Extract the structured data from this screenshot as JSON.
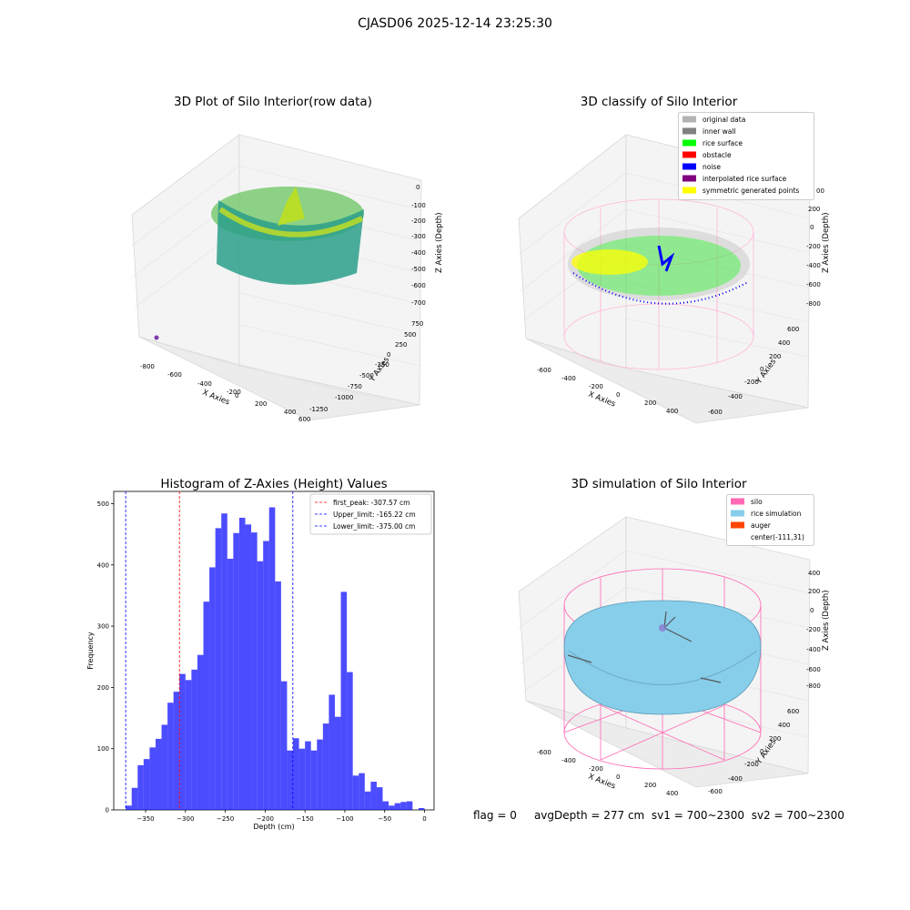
{
  "figure": {
    "suptitle": "CJASD06 2025-12-14 23:25:30",
    "footer": {
      "flag": "flag = 0",
      "avg_depth": "avgDepth = 277 cm",
      "sv1": "sv1 = 700~2300",
      "sv2": "sv2 = 700~2300"
    }
  },
  "panel_raw": {
    "title": "3D Plot of Silo Interior(row data)",
    "xlabel": "X Axies",
    "ylabel": "Y Axies",
    "zlabel": "Z Axies (Depth)",
    "x_ticks": [
      "-800",
      "-600",
      "-400",
      "-200",
      "0",
      "200",
      "400",
      "600"
    ],
    "y_ticks": [
      "750",
      "500",
      "250",
      "0",
      "-250",
      "-500",
      "-750",
      "-1000",
      "-1250"
    ],
    "z_ticks": [
      "0",
      "-100",
      "-200",
      "-300",
      "-400",
      "-500",
      "-600",
      "-700"
    ],
    "colormap": "viridis"
  },
  "panel_classify": {
    "title": "3D classify of Silo Interior",
    "xlabel": "X Axies",
    "ylabel": "Y Axies",
    "zlabel": "Z Axies (Depth)",
    "x_ticks": [
      "-600",
      "-400",
      "-200",
      "0",
      "200",
      "400"
    ],
    "y_ticks": [
      "600",
      "400",
      "200",
      "0",
      "-200",
      "-400",
      "-600"
    ],
    "z_ticks": [
      "200",
      "0",
      "-200",
      "-400",
      "-600",
      "-800"
    ],
    "z_tick_top_partial": "00",
    "legend": [
      {
        "label": "original data",
        "color": "#b3b3b3"
      },
      {
        "label": "inner wall",
        "color": "#808080"
      },
      {
        "label": "rice surface",
        "color": "#00ff00"
      },
      {
        "label": "obstacle",
        "color": "#ff0000"
      },
      {
        "label": "noise",
        "color": "#0000ff"
      },
      {
        "label": "interpolated rice surface",
        "color": "#800080"
      },
      {
        "label": "symmetric generated points",
        "color": "#ffff00"
      }
    ]
  },
  "panel_sim": {
    "title": "3D simulation of Silo Interior",
    "xlabel": "X Axies",
    "ylabel": "Y Axies",
    "zlabel": "Z Axies (Depth)",
    "x_ticks": [
      "-600",
      "-400",
      "-200",
      "0",
      "200",
      "400"
    ],
    "y_ticks": [
      "600",
      "400",
      "200",
      "0",
      "-200",
      "-400",
      "-600"
    ],
    "z_ticks": [
      "400",
      "200",
      "0",
      "-200",
      "-400",
      "-600",
      "-800"
    ],
    "legend": [
      {
        "label": "silo",
        "color": "#ff69b4"
      },
      {
        "label": "rice simulation",
        "color": "#87ceeb"
      },
      {
        "label": "auger",
        "color": "#ff4500"
      },
      {
        "label": "center(-111,31)",
        "color": ""
      }
    ]
  },
  "chart_data": {
    "type": "bar",
    "title": "Histogram of Z-Axies (Height) Values",
    "xlabel": "Depth (cm)",
    "ylabel": "Frequency",
    "xlim": [
      -390,
      12
    ],
    "ylim": [
      0,
      520
    ],
    "bin_width": 7.5,
    "bin_start": -375,
    "bar_color": "#0000ff",
    "bar_alpha": 0.7,
    "x_ticks": [
      -350,
      -300,
      -250,
      -200,
      -150,
      -100,
      -50,
      0
    ],
    "x_tick_labels": [
      "−350",
      "−300",
      "−250",
      "−200",
      "−150",
      "−100",
      "−50",
      "0"
    ],
    "y_ticks": [
      0,
      100,
      200,
      300,
      400,
      500
    ],
    "y_tick_labels": [
      "0",
      "100",
      "200",
      "300",
      "400",
      "500"
    ],
    "values": [
      7,
      36,
      73,
      83,
      102,
      116,
      139,
      175,
      193,
      222,
      212,
      229,
      253,
      340,
      396,
      460,
      484,
      410,
      452,
      477,
      466,
      453,
      406,
      439,
      494,
      373,
      210,
      97,
      117,
      100,
      112,
      97,
      115,
      141,
      188,
      152,
      356,
      225,
      56,
      60,
      30,
      46,
      37,
      14,
      7,
      11,
      13,
      14,
      0,
      3
    ],
    "vlines": [
      {
        "label": "first_peak: -307.57 cm",
        "x": -307.57,
        "color": "#ff0000"
      },
      {
        "label": "Upper_limit: -165.22 cm",
        "x": -165.22,
        "color": "#0000ff"
      },
      {
        "label": "Lower_limit: -375.00 cm",
        "x": -375.0,
        "color": "#0000ff"
      }
    ],
    "legend_position": "upper right"
  }
}
